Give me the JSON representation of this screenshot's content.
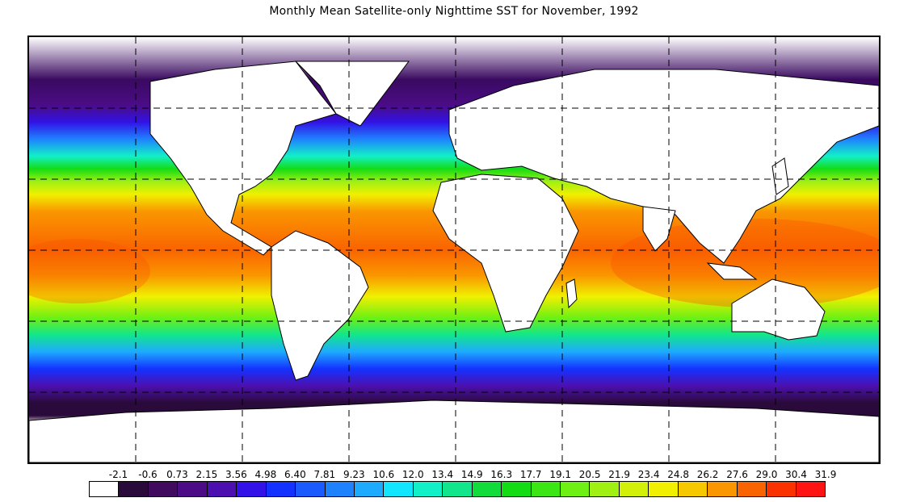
{
  "title": "Monthly Mean Satellite-only Nighttime SST for November, 1992",
  "colorbar": {
    "tick_labels": [
      "-2.1",
      "-0.6",
      "0.73",
      "2.15",
      "3.56",
      "4.98",
      "6.40",
      "7.81",
      "9.23",
      "10.6",
      "12.0",
      "13.4",
      "14.9",
      "16.3",
      "17.7",
      "19.1",
      "20.5",
      "21.9",
      "23.4",
      "24.8",
      "26.2",
      "27.6",
      "29.0",
      "30.4",
      "31.9"
    ],
    "colors": [
      "#ffffff",
      "#2a0a3a",
      "#400a5e",
      "#4b0c86",
      "#4c10b0",
      "#3212e6",
      "#1432ff",
      "#1a5aff",
      "#1e82ff",
      "#1eaaff",
      "#12e6ff",
      "#12f0c8",
      "#12e68c",
      "#12dc3c",
      "#14dc14",
      "#3ce614",
      "#6ef014",
      "#a0f014",
      "#d2f00a",
      "#f0f000",
      "#f5c800",
      "#fa9600",
      "#fa6400",
      "#fa3200",
      "#ff1414"
    ]
  },
  "map": {
    "grid": "dashed",
    "land_color": "#ffffff",
    "outline_color": "#000000"
  }
}
